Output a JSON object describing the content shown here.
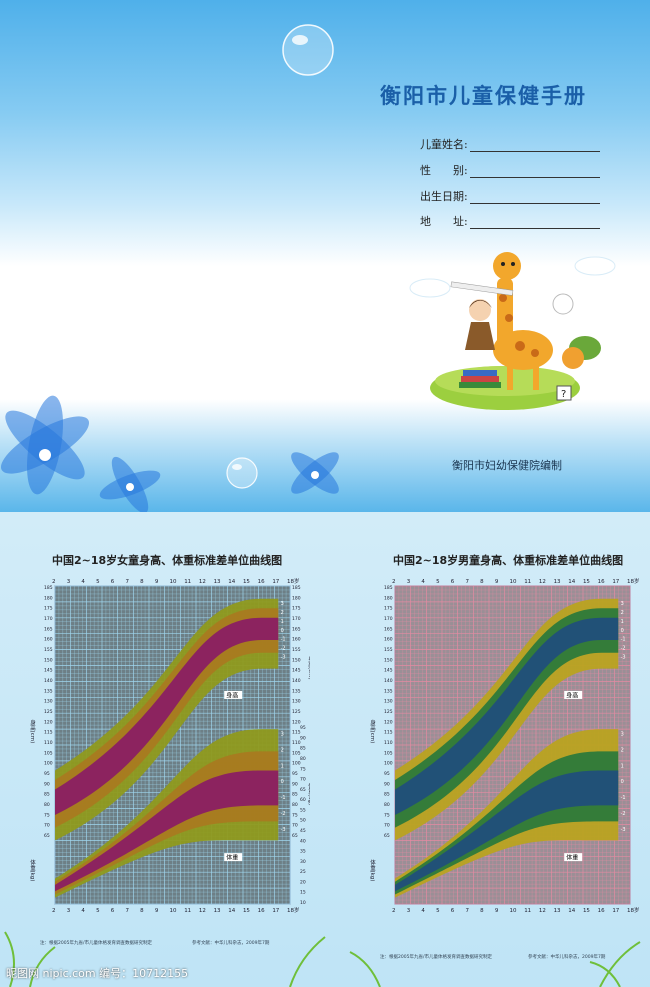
{
  "cover": {
    "title": "衡阳市儿童保健手册",
    "fields": [
      {
        "label": "儿童姓名:"
      },
      {
        "label": "性　　别:"
      },
      {
        "label": "出生日期:"
      },
      {
        "label": "地　　址:"
      }
    ],
    "publisher": "衡阳市妇幼保健院编制"
  },
  "charts": {
    "girls": {
      "title": "中国2~18岁女童身高、体重标准差单位曲线图",
      "left_height_label": "身高(cm)",
      "left_weight_label": "体重(kg)",
      "right_height_label": "身高(cm)",
      "right_weight_label": "体重(kg)",
      "height_tag": "身高",
      "weight_tag": "体重",
      "note_left": "注：根据2005年九省/市儿童体格发育调查数据研究制定",
      "note_right": "参考文献：中华儿科杂志，2009年7期",
      "colors": {
        "bg": "#6d7f86",
        "grid": "#9fd6ee",
        "outer": "#8f9a1e",
        "mid": "#a97a20",
        "inner": "#8a1f63"
      }
    },
    "boys": {
      "title": "中国2~18岁男童身高、体重标准差单位曲线图",
      "left_height_label": "身高(cm)",
      "left_weight_label": "体重(kg)",
      "height_tag": "身高",
      "weight_tag": "体重",
      "note_left": "注：根据2005年九省/市儿童体格发育调查数据研究制定",
      "note_right": "参考文献：中华儿科杂志，2009年7期",
      "colors": {
        "bg": "#9a8f96",
        "grid": "#e58aa2",
        "outer": "#b9a320",
        "mid": "#2c7a3a",
        "inner": "#214f7a"
      }
    },
    "x_ticks": [
      "2",
      "3",
      "4",
      "5",
      "6",
      "7",
      "8",
      "9",
      "10",
      "11",
      "12",
      "13",
      "14",
      "15",
      "16",
      "17",
      "18岁"
    ],
    "height_ticks": [
      "185",
      "180",
      "175",
      "170",
      "165",
      "160",
      "155",
      "150",
      "145",
      "140",
      "135",
      "130",
      "125",
      "120",
      "115",
      "110",
      "105",
      "100",
      "95",
      "90",
      "85",
      "80",
      "75",
      "70",
      "65"
    ],
    "weight_ticks": [
      "10",
      "15",
      "20",
      "25",
      "30",
      "35",
      "40",
      "45",
      "50",
      "55",
      "60",
      "65",
      "70",
      "75",
      "80",
      "85",
      "90",
      "95"
    ],
    "sd_labels": [
      "3",
      "2",
      "1",
      "0",
      "-1",
      "-2",
      "-3"
    ]
  },
  "watermark": "昵图网 nipic.com  编号：10712155"
}
